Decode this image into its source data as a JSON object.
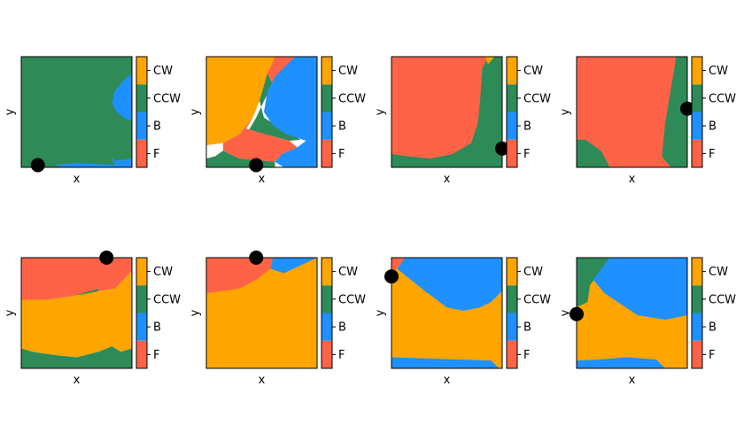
{
  "colors": {
    "F": "#ff6347",
    "B": "#1e90ff",
    "CCW": "#2e8b57",
    "CW": "#ffa500",
    "marker": "#000000"
  },
  "chart_data": [
    {
      "type": "heatmap",
      "xlabel": "x",
      "ylabel": "y",
      "colorbar": [
        "F",
        "B",
        "CCW",
        "CW"
      ],
      "marker": [
        0.15,
        0.02
      ],
      "regions": [
        {
          "label": "CCW",
          "poly": [
            [
              0,
              0
            ],
            [
              1,
              0
            ],
            [
              1,
              1
            ],
            [
              0,
              1
            ]
          ]
        },
        {
          "label": "B",
          "poly": [
            [
              0.85,
              0.02
            ],
            [
              0.78,
              0.14
            ],
            [
              0.8,
              0.1
            ],
            [
              0.85,
              0.06
            ],
            [
              1,
              0.08
            ],
            [
              1,
              0
            ],
            [
              0.4,
              0
            ],
            [
              0.3,
              0.02
            ],
            [
              0.5,
              0.04
            ],
            [
              0.85,
              0.02
            ]
          ]
        },
        {
          "label": "B",
          "poly": [
            [
              1,
              0.53
            ],
            [
              1,
              0.85
            ],
            [
              0.92,
              0.78
            ],
            [
              0.84,
              0.68
            ],
            [
              0.82,
              0.58
            ],
            [
              0.86,
              0.5
            ],
            [
              0.94,
              0.44
            ],
            [
              1,
              0.42
            ]
          ]
        }
      ]
    },
    {
      "type": "heatmap",
      "xlabel": "x",
      "ylabel": "y",
      "colorbar": [
        "F",
        "B",
        "CCW",
        "CW"
      ],
      "marker": [
        0.45,
        0.02
      ],
      "regions": [
        {
          "label": "CW",
          "poly": [
            [
              0,
              0.08
            ],
            [
              0,
              1
            ],
            [
              0.62,
              1
            ],
            [
              0.55,
              0.85
            ],
            [
              0.48,
              0.6
            ],
            [
              0.42,
              0.45
            ],
            [
              0.3,
              0.3
            ],
            [
              0.15,
              0.22
            ],
            [
              0,
              0.2
            ]
          ]
        },
        {
          "label": "F",
          "poly": [
            [
              0.62,
              1
            ],
            [
              0.8,
              1
            ],
            [
              0.6,
              0.75
            ],
            [
              0.55,
              0.85
            ]
          ]
        },
        {
          "label": "CCW",
          "poly": [
            [
              0.55,
              0.85
            ],
            [
              0.6,
              0.75
            ],
            [
              0.52,
              0.6
            ],
            [
              0.45,
              0.45
            ],
            [
              0.38,
              0.33
            ],
            [
              0.6,
              0.28
            ],
            [
              0.75,
              0.24
            ],
            [
              0.85,
              0.25
            ],
            [
              0.68,
              0.35
            ],
            [
              0.52,
              0.45
            ],
            [
              0.48,
              0.6
            ]
          ]
        },
        {
          "label": "B",
          "poly": [
            [
              0.8,
              1
            ],
            [
              1,
              1
            ],
            [
              1,
              0
            ],
            [
              0.7,
              0
            ],
            [
              0.62,
              0.05
            ],
            [
              0.68,
              0.12
            ],
            [
              0.82,
              0.18
            ],
            [
              0.9,
              0.24
            ],
            [
              0.72,
              0.3
            ],
            [
              0.6,
              0.38
            ],
            [
              0.52,
              0.5
            ],
            [
              0.55,
              0.68
            ],
            [
              0.62,
              0.82
            ]
          ]
        },
        {
          "label": "F",
          "poly": [
            [
              0.3,
              0.3
            ],
            [
              0.42,
              0.45
            ],
            [
              0.36,
              0.35
            ],
            [
              0.6,
              0.28
            ],
            [
              0.75,
              0.24
            ],
            [
              0.82,
              0.18
            ],
            [
              0.68,
              0.12
            ],
            [
              0.62,
              0.05
            ],
            [
              0.3,
              0.08
            ],
            [
              0.15,
              0.15
            ],
            [
              0.15,
              0.22
            ]
          ]
        },
        {
          "label": "CCW",
          "poly": [
            [
              0,
              0
            ],
            [
              0.62,
              0
            ],
            [
              0.62,
              0.05
            ],
            [
              0.3,
              0.08
            ],
            [
              0.15,
              0.15
            ],
            [
              0.08,
              0.1
            ],
            [
              0,
              0.08
            ]
          ]
        }
      ]
    },
    {
      "type": "heatmap",
      "xlabel": "x",
      "ylabel": "y",
      "colorbar": [
        "F",
        "B",
        "CCW",
        "CW"
      ],
      "marker": [
        1.0,
        0.17
      ],
      "regions": [
        {
          "label": "CCW",
          "poly": [
            [
              0,
              0
            ],
            [
              1,
              0
            ],
            [
              1,
              1
            ],
            [
              0,
              1
            ]
          ]
        },
        {
          "label": "F",
          "poly": [
            [
              0,
              1
            ],
            [
              0.88,
              1
            ],
            [
              0.82,
              0.9
            ],
            [
              0.8,
              0.6
            ],
            [
              0.78,
              0.4
            ],
            [
              0.72,
              0.22
            ],
            [
              0.55,
              0.12
            ],
            [
              0.35,
              0.08
            ],
            [
              0.15,
              0.1
            ],
            [
              0,
              0.12
            ]
          ]
        },
        {
          "label": "CW",
          "poly": [
            [
              0.85,
              1
            ],
            [
              0.93,
              1
            ],
            [
              0.87,
              0.93
            ]
          ]
        }
      ]
    },
    {
      "type": "heatmap",
      "xlabel": "x",
      "ylabel": "y",
      "colorbar": [
        "F",
        "B",
        "CCW",
        "CW"
      ],
      "marker": [
        1.0,
        0.53
      ],
      "regions": [
        {
          "label": "CCW",
          "poly": [
            [
              0,
              0
            ],
            [
              1,
              0
            ],
            [
              1,
              1
            ],
            [
              0,
              1
            ]
          ]
        },
        {
          "label": "F",
          "poly": [
            [
              0,
              1
            ],
            [
              0.9,
              1
            ],
            [
              0.85,
              0.7
            ],
            [
              0.8,
              0.4
            ],
            [
              0.77,
              0.1
            ],
            [
              0.85,
              0
            ],
            [
              0.3,
              0
            ],
            [
              0.22,
              0.15
            ],
            [
              0.08,
              0.25
            ],
            [
              0,
              0.25
            ]
          ]
        }
      ]
    },
    {
      "type": "heatmap",
      "xlabel": "x",
      "ylabel": "y",
      "colorbar": [
        "F",
        "B",
        "CCW",
        "CW"
      ],
      "marker": [
        0.77,
        1.0
      ],
      "regions": [
        {
          "label": "F",
          "poly": [
            [
              0,
              1
            ],
            [
              1,
              1
            ],
            [
              1,
              0.88
            ],
            [
              0.85,
              0.72
            ],
            [
              0.72,
              0.7
            ],
            [
              0.45,
              0.65
            ],
            [
              0.25,
              0.62
            ],
            [
              0,
              0.62
            ]
          ]
        },
        {
          "label": "CCW",
          "poly": [
            [
              0.45,
              0.65
            ],
            [
              0.7,
              0.72
            ],
            [
              0.68,
              0.68
            ],
            [
              0.48,
              0.66
            ]
          ]
        },
        {
          "label": "CW",
          "poly": [
            [
              0,
              0.62
            ],
            [
              0.25,
              0.62
            ],
            [
              0.45,
              0.65
            ],
            [
              0.72,
              0.7
            ],
            [
              0.85,
              0.72
            ],
            [
              1,
              0.88
            ],
            [
              1,
              0.18
            ],
            [
              0.9,
              0.15
            ],
            [
              0.82,
              0.2
            ],
            [
              0.7,
              0.15
            ],
            [
              0.5,
              0.1
            ],
            [
              0.3,
              0.12
            ],
            [
              0.1,
              0.15
            ],
            [
              0,
              0.18
            ]
          ]
        },
        {
          "label": "CCW",
          "poly": [
            [
              0,
              0
            ],
            [
              1,
              0
            ],
            [
              1,
              0.18
            ],
            [
              0.9,
              0.15
            ],
            [
              0.82,
              0.2
            ],
            [
              0.7,
              0.15
            ],
            [
              0.5,
              0.1
            ],
            [
              0.3,
              0.12
            ],
            [
              0.1,
              0.15
            ],
            [
              0,
              0.18
            ]
          ]
        }
      ]
    },
    {
      "type": "heatmap",
      "xlabel": "x",
      "ylabel": "y",
      "colorbar": [
        "F",
        "B",
        "CCW",
        "CW"
      ],
      "marker": [
        0.45,
        1.0
      ],
      "regions": [
        {
          "label": "CW",
          "poly": [
            [
              0,
              0
            ],
            [
              1,
              0
            ],
            [
              1,
              1
            ],
            [
              0,
              1
            ]
          ]
        },
        {
          "label": "F",
          "poly": [
            [
              0,
              1
            ],
            [
              0.6,
              1
            ],
            [
              0.58,
              0.9
            ],
            [
              0.45,
              0.8
            ],
            [
              0.3,
              0.72
            ],
            [
              0,
              0.68
            ]
          ]
        },
        {
          "label": "B",
          "poly": [
            [
              0.6,
              1
            ],
            [
              1,
              1
            ],
            [
              0.7,
              0.86
            ],
            [
              0.58,
              0.9
            ]
          ]
        }
      ]
    },
    {
      "type": "heatmap",
      "xlabel": "x",
      "ylabel": "y",
      "colorbar": [
        "F",
        "B",
        "CCW",
        "CW"
      ],
      "marker": [
        0.0,
        0.83
      ],
      "regions": [
        {
          "label": "CW",
          "poly": [
            [
              0,
              0
            ],
            [
              1,
              0
            ],
            [
              1,
              1
            ],
            [
              0,
              1
            ]
          ]
        },
        {
          "label": "B",
          "poly": [
            [
              0.12,
              1
            ],
            [
              1,
              1
            ],
            [
              1,
              0.7
            ],
            [
              0.9,
              0.6
            ],
            [
              0.8,
              0.55
            ],
            [
              0.65,
              0.52
            ],
            [
              0.5,
              0.55
            ],
            [
              0.3,
              0.7
            ],
            [
              0.15,
              0.82
            ],
            [
              0.05,
              0.9
            ]
          ]
        },
        {
          "label": "F",
          "poly": [
            [
              0,
              1
            ],
            [
              0.12,
              1
            ],
            [
              0.03,
              0.88
            ],
            [
              0,
              0.86
            ]
          ]
        },
        {
          "label": "B",
          "poly": [
            [
              0,
              0
            ],
            [
              0.97,
              0
            ],
            [
              0.9,
              0.07
            ],
            [
              0.6,
              0.08
            ],
            [
              0.3,
              0.09
            ],
            [
              0,
              0.1
            ]
          ]
        }
      ]
    },
    {
      "type": "heatmap",
      "xlabel": "x",
      "ylabel": "y",
      "colorbar": [
        "F",
        "B",
        "CCW",
        "CW"
      ],
      "marker": [
        0.0,
        0.49
      ],
      "regions": [
        {
          "label": "CW",
          "poly": [
            [
              0,
              0
            ],
            [
              1,
              0
            ],
            [
              1,
              1
            ],
            [
              0,
              1
            ]
          ]
        },
        {
          "label": "CCW",
          "poly": [
            [
              0,
              1
            ],
            [
              0.3,
              1
            ],
            [
              0.12,
              0.75
            ],
            [
              0.1,
              0.6
            ],
            [
              0,
              0.55
            ]
          ]
        },
        {
          "label": "B",
          "poly": [
            [
              0.3,
              1
            ],
            [
              1,
              1
            ],
            [
              1,
              0.48
            ],
            [
              0.8,
              0.44
            ],
            [
              0.55,
              0.48
            ],
            [
              0.4,
              0.58
            ],
            [
              0.25,
              0.68
            ],
            [
              0.15,
              0.8
            ]
          ]
        },
        {
          "label": "B",
          "poly": [
            [
              0,
              0
            ],
            [
              0.8,
              0
            ],
            [
              0.72,
              0.08
            ],
            [
              0.45,
              0.1
            ],
            [
              0.2,
              0.08
            ],
            [
              0,
              0.07
            ]
          ]
        }
      ]
    }
  ]
}
